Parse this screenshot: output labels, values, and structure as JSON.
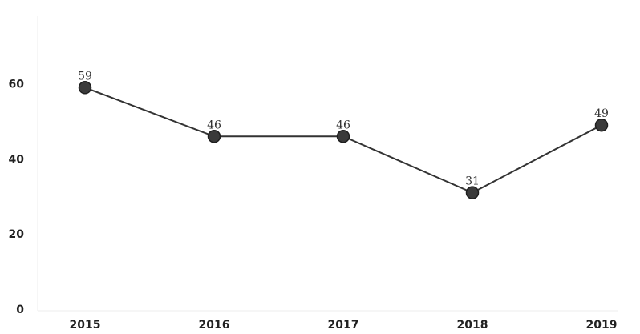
{
  "chart_data": {
    "type": "line",
    "categories": [
      "2015",
      "2016",
      "2017",
      "2018",
      "2019"
    ],
    "series": [
      {
        "values": [
          59,
          46,
          46,
          31,
          49
        ],
        "labels": [
          "59",
          "46",
          "46",
          "31",
          "49"
        ]
      }
    ],
    "yticks": [
      "0",
      "20",
      "40",
      "60"
    ],
    "ylim": [
      0,
      80
    ],
    "grid": false,
    "legend": "none",
    "colors": {
      "line": "#333333",
      "point": "#3a3a3a"
    }
  }
}
